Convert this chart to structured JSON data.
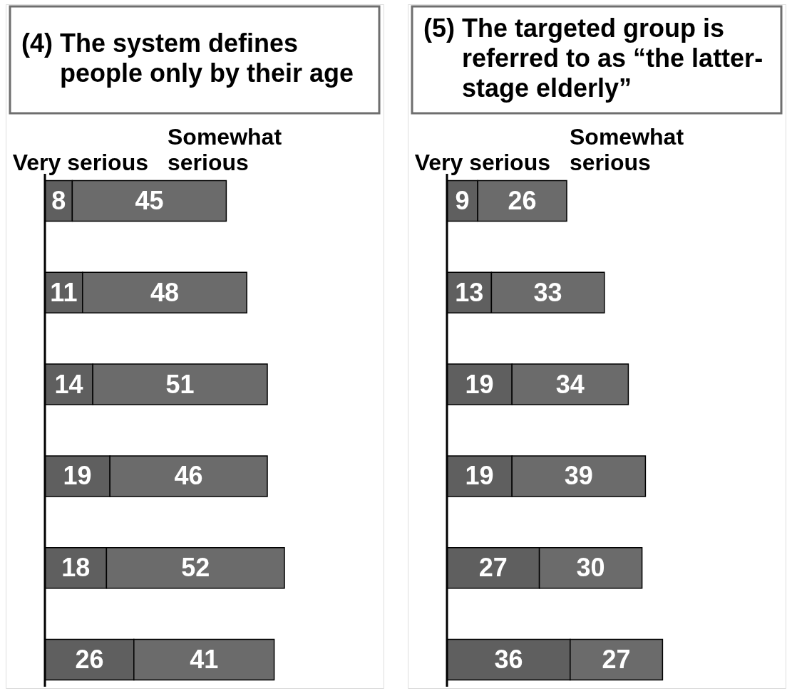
{
  "chart_data": [
    {
      "type": "bar",
      "orientation": "horizontal",
      "stacked": true,
      "title": "(4) The system defines people only by their age",
      "categories": [
        null,
        null,
        null,
        null,
        null,
        null
      ],
      "series": [
        {
          "name": "Very serious",
          "color": "#5f5f5f",
          "values": [
            8,
            11,
            14,
            19,
            18,
            26
          ]
        },
        {
          "name": "Somewhat serious",
          "color": "#6b6b6b",
          "values": [
            45,
            48,
            51,
            46,
            52,
            41
          ]
        }
      ],
      "data_labels": true,
      "legend": "top"
    },
    {
      "type": "bar",
      "orientation": "horizontal",
      "stacked": true,
      "title": "(5) The targeted group is referred to as “the latter-stage elderly”",
      "categories": [
        null,
        null,
        null,
        null,
        null,
        null
      ],
      "series": [
        {
          "name": "Very serious",
          "color": "#5f5f5f",
          "values": [
            9,
            13,
            19,
            19,
            27,
            36
          ]
        },
        {
          "name": "Somewhat serious",
          "color": "#6b6b6b",
          "values": [
            26,
            33,
            34,
            39,
            30,
            27
          ]
        }
      ],
      "data_labels": true,
      "legend": "top"
    }
  ]
}
